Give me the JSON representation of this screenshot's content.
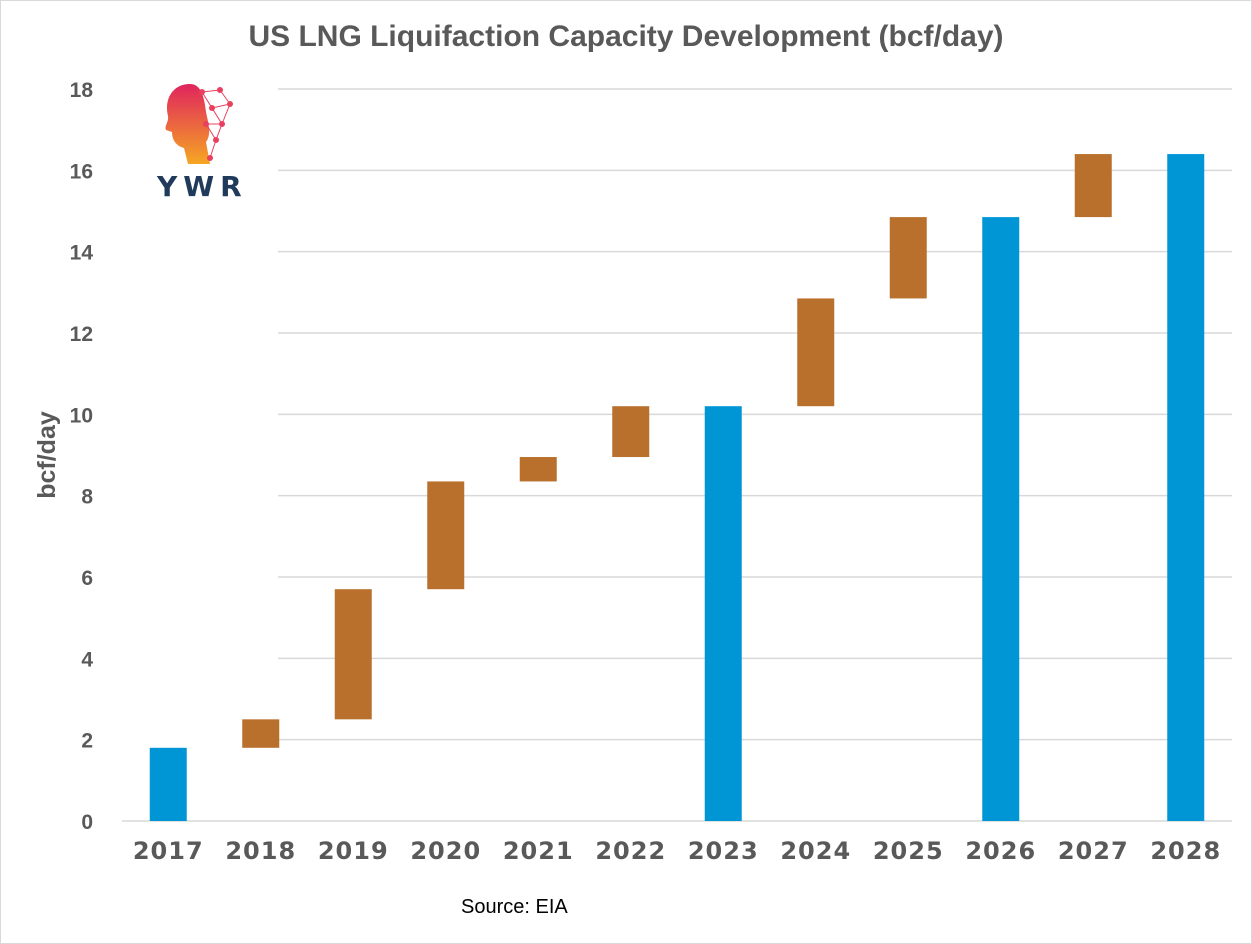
{
  "chart_data": {
    "type": "bar",
    "title": "US LNG Liquifaction Capacity Development (bcf/day)",
    "ylabel": "bcf/day",
    "xlabel": "",
    "ylim": [
      0,
      18
    ],
    "yticks": [
      0,
      2,
      4,
      6,
      8,
      10,
      12,
      14,
      16,
      18
    ],
    "grid": true,
    "categories": [
      "2017",
      "2018",
      "2019",
      "2020",
      "2021",
      "2022",
      "2023",
      "2024",
      "2025",
      "2026",
      "2027",
      "2028"
    ],
    "bars": [
      {
        "category": "2017",
        "kind": "total",
        "start": 0,
        "end": 1.8
      },
      {
        "category": "2018",
        "kind": "increment",
        "start": 1.8,
        "end": 2.5
      },
      {
        "category": "2019",
        "kind": "increment",
        "start": 2.5,
        "end": 5.7
      },
      {
        "category": "2020",
        "kind": "increment",
        "start": 5.7,
        "end": 8.35
      },
      {
        "category": "2021",
        "kind": "increment",
        "start": 8.35,
        "end": 8.95
      },
      {
        "category": "2022",
        "kind": "increment",
        "start": 8.95,
        "end": 10.2
      },
      {
        "category": "2023",
        "kind": "total",
        "start": 0,
        "end": 10.2
      },
      {
        "category": "2024",
        "kind": "increment",
        "start": 10.2,
        "end": 12.85
      },
      {
        "category": "2025",
        "kind": "increment",
        "start": 12.85,
        "end": 14.85
      },
      {
        "category": "2026",
        "kind": "total",
        "start": 0,
        "end": 14.85
      },
      {
        "category": "2027",
        "kind": "increment",
        "start": 14.85,
        "end": 16.4
      },
      {
        "category": "2028",
        "kind": "total",
        "start": 0,
        "end": 16.4
      }
    ],
    "colors": {
      "total": "#0096d6",
      "increment": "#b8702c",
      "grid": "#d9d9d9",
      "axis_text": "#595959"
    }
  },
  "source_note": "Source: EIA",
  "logo": {
    "text": "YWR",
    "icon": "head-network-icon"
  }
}
